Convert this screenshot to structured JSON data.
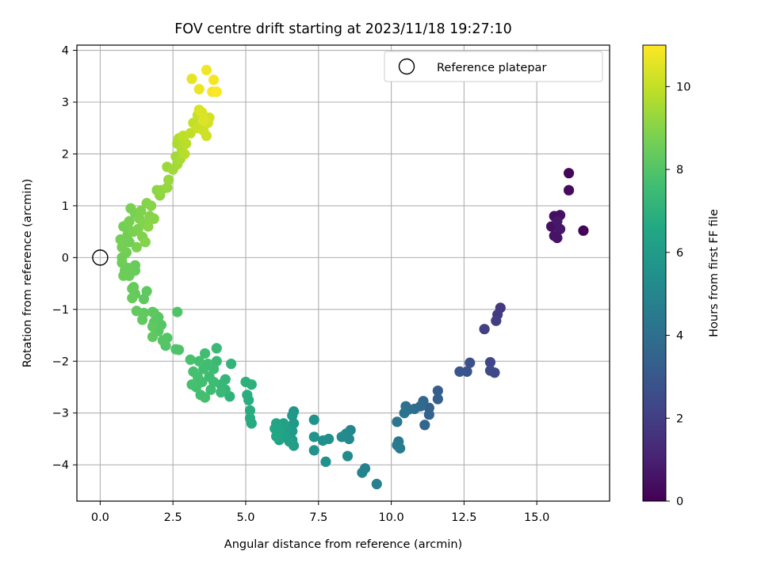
{
  "chart_data": {
    "type": "scatter",
    "title": "FOV centre drift starting at 2023/11/18 19:27:10",
    "xlabel": "Angular distance from reference (arcmin)",
    "ylabel": "Rotation from reference (arcmin)",
    "xlim": [
      -0.8,
      17.5
    ],
    "ylim": [
      -4.7,
      4.1
    ],
    "xticks": [
      0.0,
      2.5,
      5.0,
      7.5,
      10.0,
      12.5,
      15.0
    ],
    "xtick_labels": [
      "0.0",
      "2.5",
      "5.0",
      "7.5",
      "10.0",
      "12.5",
      "15.0"
    ],
    "yticks": [
      -4,
      -3,
      -2,
      -1,
      0,
      1,
      2,
      3,
      4
    ],
    "ytick_labels": [
      "−4",
      "−3",
      "−2",
      "−1",
      "0",
      "1",
      "2",
      "3",
      "4"
    ],
    "grid": true,
    "legend": {
      "position": "top-right",
      "entries": [
        "Reference platepar"
      ]
    },
    "reference_point": {
      "x": 0.0,
      "y": 0.0
    },
    "colorbar": {
      "label": "Hours from first FF file",
      "range": [
        0,
        11
      ],
      "ticks": [
        0,
        2,
        4,
        6,
        8,
        10
      ],
      "tick_labels": [
        "0",
        "2",
        "4",
        "6",
        "8",
        "10"
      ],
      "colormap": "viridis"
    },
    "series": [
      {
        "values": [
          [
            16.6,
            0.52,
            0.1
          ],
          [
            16.1,
            1.63,
            0.2
          ],
          [
            16.1,
            1.3,
            0.3
          ],
          [
            15.6,
            0.8,
            0.4
          ],
          [
            15.8,
            0.82,
            0.45
          ],
          [
            15.5,
            0.6,
            0.5
          ],
          [
            15.6,
            0.42,
            0.55
          ],
          [
            15.7,
            0.38,
            0.6
          ],
          [
            15.8,
            0.55,
            0.65
          ],
          [
            15.7,
            0.7,
            0.7
          ],
          [
            13.75,
            -0.97,
            1.8
          ],
          [
            13.65,
            -1.1,
            1.9
          ],
          [
            13.6,
            -1.22,
            2.0
          ],
          [
            13.2,
            -1.38,
            2.1
          ],
          [
            13.4,
            -2.02,
            2.3
          ],
          [
            13.55,
            -2.22,
            2.4
          ],
          [
            13.4,
            -2.18,
            2.5
          ],
          [
            12.7,
            -2.03,
            2.7
          ],
          [
            12.6,
            -2.2,
            2.8
          ],
          [
            12.35,
            -2.2,
            2.9
          ],
          [
            11.6,
            -2.57,
            3.2
          ],
          [
            11.6,
            -2.73,
            3.3
          ],
          [
            11.3,
            -2.9,
            3.4
          ],
          [
            11.3,
            -3.03,
            3.5
          ],
          [
            11.15,
            -3.23,
            3.6
          ],
          [
            11.1,
            -2.77,
            3.7
          ],
          [
            11.0,
            -2.87,
            3.8
          ],
          [
            10.8,
            -2.92,
            3.9
          ],
          [
            10.6,
            -2.93,
            4.0
          ],
          [
            10.5,
            -2.87,
            4.1
          ],
          [
            10.45,
            -3.0,
            4.2
          ],
          [
            10.2,
            -3.17,
            4.3
          ],
          [
            10.25,
            -3.55,
            4.4
          ],
          [
            10.3,
            -3.68,
            4.5
          ],
          [
            10.2,
            -3.62,
            4.55
          ],
          [
            9.5,
            -4.37,
            4.7
          ],
          [
            9.1,
            -4.07,
            4.8
          ],
          [
            9.0,
            -4.15,
            4.85
          ],
          [
            8.6,
            -3.33,
            5.0
          ],
          [
            8.55,
            -3.5,
            5.1
          ],
          [
            8.45,
            -3.4,
            5.15
          ],
          [
            8.3,
            -3.46,
            5.2
          ],
          [
            8.5,
            -3.83,
            5.25
          ],
          [
            7.85,
            -3.5,
            5.4
          ],
          [
            7.65,
            -3.53,
            5.45
          ],
          [
            7.75,
            -3.94,
            5.5
          ],
          [
            7.35,
            -3.13,
            5.55
          ],
          [
            7.35,
            -3.46,
            5.6
          ],
          [
            7.35,
            -3.72,
            5.65
          ],
          [
            6.65,
            -2.97,
            5.8
          ],
          [
            6.6,
            -3.05,
            5.85
          ],
          [
            6.65,
            -3.2,
            5.9
          ],
          [
            6.6,
            -3.35,
            5.95
          ],
          [
            6.6,
            -3.52,
            6.0
          ],
          [
            6.65,
            -3.63,
            6.05
          ],
          [
            6.4,
            -3.3,
            6.1
          ],
          [
            6.35,
            -3.45,
            6.15
          ],
          [
            6.5,
            -3.55,
            6.2
          ],
          [
            6.3,
            -3.2,
            6.25
          ],
          [
            6.2,
            -3.37,
            6.3
          ],
          [
            6.15,
            -3.52,
            6.35
          ],
          [
            6.05,
            -3.2,
            6.4
          ],
          [
            6.1,
            -3.3,
            6.45
          ],
          [
            6.0,
            -3.3,
            6.5
          ],
          [
            6.05,
            -3.45,
            6.55
          ],
          [
            5.2,
            -3.2,
            6.7
          ],
          [
            5.15,
            -3.1,
            6.75
          ],
          [
            5.15,
            -2.95,
            6.8
          ],
          [
            5.1,
            -2.75,
            6.85
          ],
          [
            5.05,
            -2.65,
            6.9
          ],
          [
            5.2,
            -2.45,
            6.95
          ],
          [
            5.0,
            -2.4,
            7.0
          ],
          [
            4.45,
            -2.68,
            7.1
          ],
          [
            4.5,
            -2.05,
            7.15
          ],
          [
            4.3,
            -2.35,
            7.2
          ],
          [
            4.3,
            -2.55,
            7.25
          ],
          [
            4.15,
            -2.45,
            7.3
          ],
          [
            4.15,
            -2.6,
            7.35
          ],
          [
            4.0,
            -1.75,
            7.4
          ],
          [
            4.0,
            -2.0,
            7.45
          ],
          [
            3.9,
            -2.15,
            7.5
          ],
          [
            3.9,
            -2.4,
            7.5
          ],
          [
            3.8,
            -2.55,
            7.55
          ],
          [
            3.75,
            -2.3,
            7.55
          ],
          [
            3.7,
            -2.05,
            7.6
          ],
          [
            3.6,
            -1.85,
            7.6
          ],
          [
            3.55,
            -2.15,
            7.6
          ],
          [
            3.5,
            -2.4,
            7.65
          ],
          [
            3.45,
            -2.65,
            7.65
          ],
          [
            3.4,
            -2.0,
            7.7
          ],
          [
            3.35,
            -2.3,
            7.7
          ],
          [
            3.3,
            -2.5,
            7.7
          ],
          [
            3.6,
            -2.7,
            7.72
          ],
          [
            3.2,
            -2.2,
            7.75
          ],
          [
            3.15,
            -2.45,
            7.75
          ],
          [
            3.1,
            -1.97,
            7.78
          ],
          [
            2.7,
            -1.78,
            7.9
          ],
          [
            2.6,
            -1.77,
            7.92
          ],
          [
            2.65,
            -1.05,
            7.95
          ],
          [
            2.25,
            -1.7,
            8.0
          ],
          [
            2.3,
            -1.55,
            8.02
          ],
          [
            2.15,
            -1.6,
            8.05
          ],
          [
            2.1,
            -1.3,
            8.08
          ],
          [
            2.0,
            -1.42,
            8.1
          ],
          [
            2.0,
            -1.15,
            8.12
          ],
          [
            1.85,
            -1.07,
            8.15
          ],
          [
            1.85,
            -1.25,
            8.18
          ],
          [
            1.8,
            -1.05,
            8.2
          ],
          [
            1.8,
            -1.33,
            8.22
          ],
          [
            1.8,
            -1.53,
            8.24
          ],
          [
            1.5,
            -0.8,
            8.26
          ],
          [
            1.6,
            -0.65,
            8.28
          ],
          [
            1.5,
            -1.07,
            8.3
          ],
          [
            1.45,
            -1.2,
            8.32
          ],
          [
            1.25,
            -1.03,
            8.34
          ],
          [
            1.2,
            -0.7,
            8.36
          ],
          [
            1.15,
            -0.57,
            8.38
          ],
          [
            1.1,
            -0.6,
            8.4
          ],
          [
            1.1,
            -0.78,
            8.42
          ],
          [
            1.2,
            -0.25,
            8.44
          ],
          [
            1.2,
            -0.15,
            8.46
          ],
          [
            1.0,
            -0.35,
            8.48
          ],
          [
            0.95,
            -0.2,
            8.5
          ],
          [
            0.85,
            -0.25,
            8.52
          ],
          [
            0.8,
            -0.35,
            8.54
          ],
          [
            0.75,
            -0.1,
            8.56
          ],
          [
            0.75,
            0.0,
            8.58
          ],
          [
            0.9,
            0.1,
            8.6
          ],
          [
            1.0,
            0.3,
            8.62
          ],
          [
            0.95,
            0.45,
            8.64
          ],
          [
            0.8,
            0.6,
            8.66
          ],
          [
            0.75,
            0.2,
            8.68
          ],
          [
            0.7,
            0.35,
            8.7
          ],
          [
            0.95,
            0.65,
            8.72
          ],
          [
            1.0,
            0.7,
            8.74
          ],
          [
            1.05,
            0.95,
            8.76
          ],
          [
            1.2,
            0.85,
            8.78
          ],
          [
            1.15,
            0.5,
            8.8
          ],
          [
            1.25,
            0.2,
            8.82
          ],
          [
            1.3,
            0.55,
            8.84
          ],
          [
            1.35,
            0.75,
            8.86
          ],
          [
            1.4,
            0.9,
            8.88
          ],
          [
            1.45,
            0.4,
            8.9
          ],
          [
            1.5,
            0.65,
            8.92
          ],
          [
            1.55,
            0.3,
            8.94
          ],
          [
            1.6,
            1.05,
            8.96
          ],
          [
            1.7,
            0.8,
            8.98
          ],
          [
            1.75,
            1.0,
            9.0
          ],
          [
            1.85,
            0.75,
            9.02
          ],
          [
            1.65,
            0.6,
            9.04
          ],
          [
            1.95,
            1.3,
            9.1
          ],
          [
            2.05,
            1.2,
            9.15
          ],
          [
            2.1,
            1.3,
            9.2
          ],
          [
            2.3,
            1.35,
            9.25
          ],
          [
            2.35,
            1.5,
            9.3
          ],
          [
            2.3,
            1.75,
            9.35
          ],
          [
            2.5,
            1.7,
            9.4
          ],
          [
            2.6,
            1.95,
            9.45
          ],
          [
            2.65,
            1.8,
            9.5
          ],
          [
            2.75,
            1.9,
            9.55
          ],
          [
            2.65,
            2.2,
            9.6
          ],
          [
            2.7,
            2.3,
            9.65
          ],
          [
            2.8,
            2.1,
            9.7
          ],
          [
            2.85,
            2.3,
            9.75
          ],
          [
            2.9,
            2.0,
            9.8
          ],
          [
            2.95,
            2.2,
            9.85
          ],
          [
            2.85,
            2.35,
            9.9
          ],
          [
            3.1,
            2.4,
            9.95
          ],
          [
            3.2,
            2.6,
            10.0
          ],
          [
            3.35,
            2.75,
            10.05
          ],
          [
            3.35,
            2.5,
            10.1
          ],
          [
            3.55,
            2.45,
            10.15
          ],
          [
            3.65,
            2.35,
            10.2
          ],
          [
            3.7,
            2.6,
            10.25
          ],
          [
            3.75,
            2.7,
            10.3
          ],
          [
            3.4,
            2.85,
            10.35
          ],
          [
            3.5,
            2.8,
            10.4
          ],
          [
            3.55,
            2.65,
            10.45
          ],
          [
            3.15,
            3.45,
            10.6
          ],
          [
            3.4,
            3.25,
            10.7
          ],
          [
            3.65,
            3.62,
            10.8
          ],
          [
            3.9,
            3.43,
            10.85
          ],
          [
            3.85,
            3.2,
            10.9
          ],
          [
            4.0,
            3.2,
            10.95
          ]
        ]
      }
    ]
  }
}
